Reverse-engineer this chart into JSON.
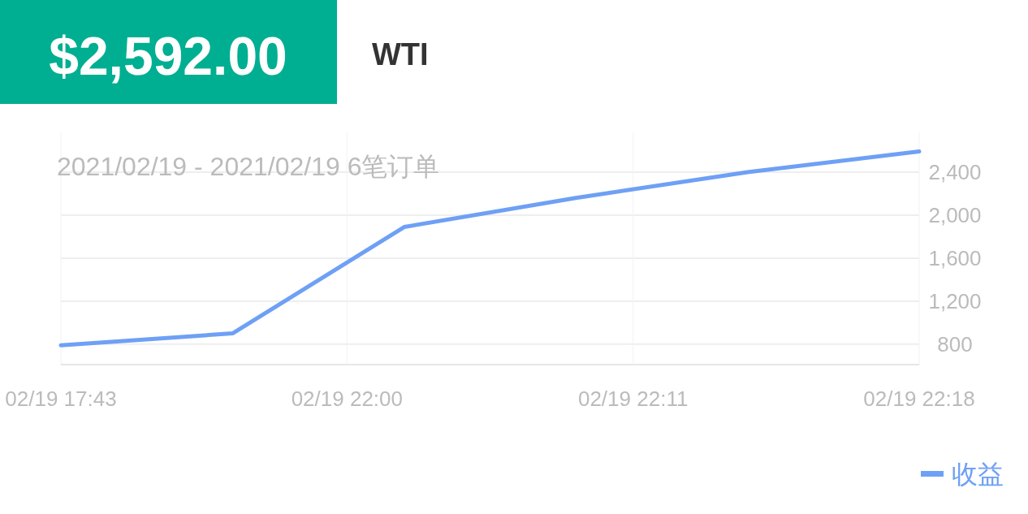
{
  "chart_data": {
    "type": "line",
    "title": "$2,592.00",
    "subtitle": "WTI",
    "annotations": [
      "2021/02/19 - 2021/02/19  6笔订单"
    ],
    "categories": [
      "02/19 17:43",
      null,
      null,
      null,
      null,
      "02/19 22:00",
      null,
      null,
      null,
      null,
      "02/19 22:11",
      null,
      null,
      null,
      null,
      "02/19 22:18"
    ],
    "series": [
      {
        "name": "收益",
        "color": "#6ea0f5",
        "values": [
          790,
          null,
          null,
          900,
          null,
          null,
          1890,
          null,
          null,
          2160,
          null,
          null,
          2400,
          null,
          null,
          2592
        ]
      }
    ],
    "ylim": [
      610,
      2770
    ],
    "yticks": [
      {
        "value": 800,
        "label": "800"
      },
      {
        "value": 1200,
        "label": "1,200"
      },
      {
        "value": 1600,
        "label": "1,600"
      },
      {
        "value": 2000,
        "label": "2,000"
      },
      {
        "value": 2400,
        "label": "2,400"
      }
    ],
    "grid": true,
    "legend": "bottom right"
  }
}
